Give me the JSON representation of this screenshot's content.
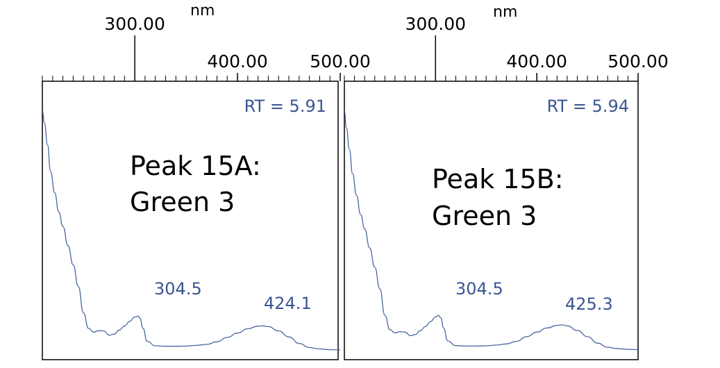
{
  "chart_data": [
    {
      "type": "line",
      "title": [
        "Peak 15A:",
        "Green 3"
      ],
      "annotation": "RT = 5.91",
      "x_unit": "nm",
      "xlim": [
        210,
        500
      ],
      "x_ticks": [
        "300.00",
        "400.00",
        "500.00"
      ],
      "peak_labels": [
        "304.5",
        "424.1"
      ],
      "color": "#4a66a0",
      "series": [
        {
          "x": [
            210,
            212,
            215,
            218,
            222,
            226,
            230,
            235,
            240,
            245,
            250,
            255,
            260,
            265,
            270,
            275,
            280,
            285,
            290,
            295,
            300,
            303,
            305,
            308,
            312,
            320,
            330,
            340,
            350,
            360,
            370,
            380,
            390,
            400,
            410,
            420,
            424,
            430,
            440,
            450,
            460,
            470,
            480,
            490,
            500
          ],
          "y": [
            1.0,
            0.95,
            0.86,
            0.75,
            0.66,
            0.58,
            0.52,
            0.44,
            0.36,
            0.27,
            0.16,
            0.095,
            0.08,
            0.086,
            0.085,
            0.067,
            0.072,
            0.089,
            0.105,
            0.125,
            0.143,
            0.147,
            0.138,
            0.096,
            0.042,
            0.023,
            0.021,
            0.021,
            0.022,
            0.025,
            0.029,
            0.04,
            0.058,
            0.076,
            0.094,
            0.105,
            0.106,
            0.103,
            0.085,
            0.06,
            0.033,
            0.016,
            0.01,
            0.007,
            0.006
          ]
        }
      ]
    },
    {
      "type": "line",
      "title": [
        "Peak 15B:",
        "Green 3"
      ],
      "annotation": "RT = 5.94",
      "x_unit": "nm",
      "xlim": [
        210,
        500
      ],
      "x_ticks": [
        "300.00",
        "400.00",
        "500.00"
      ],
      "peak_labels": [
        "304.5",
        "425.3"
      ],
      "color": "#4a66a0",
      "series": [
        {
          "x": [
            210,
            212,
            215,
            218,
            222,
            226,
            230,
            235,
            240,
            245,
            250,
            255,
            260,
            265,
            270,
            275,
            280,
            285,
            290,
            295,
            300,
            303,
            305,
            308,
            312,
            320,
            330,
            340,
            350,
            360,
            370,
            380,
            390,
            400,
            410,
            420,
            425,
            430,
            440,
            450,
            460,
            470,
            480,
            490,
            500
          ],
          "y": [
            1.0,
            0.93,
            0.84,
            0.74,
            0.65,
            0.57,
            0.51,
            0.43,
            0.35,
            0.26,
            0.15,
            0.09,
            0.077,
            0.082,
            0.08,
            0.065,
            0.07,
            0.086,
            0.103,
            0.123,
            0.143,
            0.15,
            0.14,
            0.097,
            0.043,
            0.024,
            0.022,
            0.022,
            0.023,
            0.026,
            0.031,
            0.042,
            0.061,
            0.08,
            0.097,
            0.108,
            0.11,
            0.106,
            0.087,
            0.061,
            0.034,
            0.017,
            0.011,
            0.008,
            0.007
          ]
        }
      ]
    }
  ]
}
